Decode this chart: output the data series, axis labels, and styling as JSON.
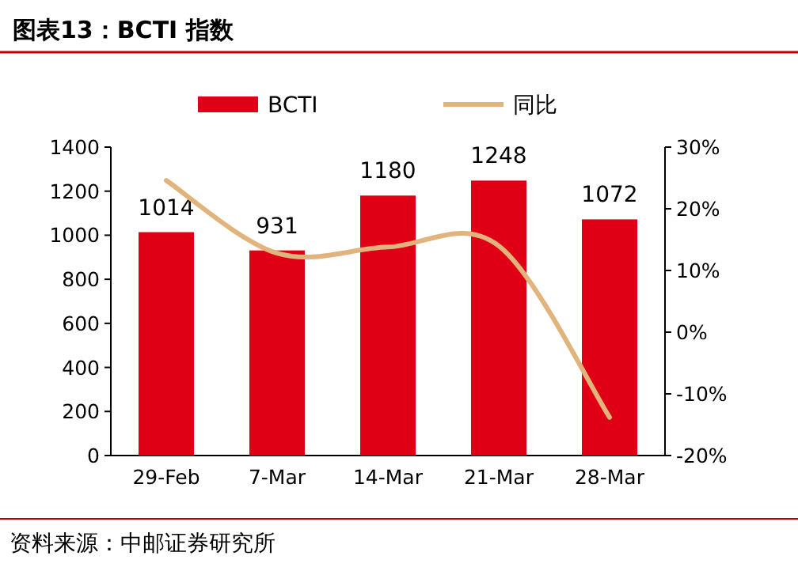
{
  "chart_data": {
    "type": "bar",
    "title": "图表13：BCTI 指数",
    "categories": [
      "29-Feb",
      "7-Mar",
      "14-Mar",
      "21-Mar",
      "28-Mar"
    ],
    "series": [
      {
        "name": "BCTI",
        "color": "#e00016",
        "values": [
          1014,
          931,
          1180,
          1248,
          1072
        ],
        "value_labels": [
          "1014",
          "931",
          "1180",
          "1248",
          "1072"
        ]
      },
      {
        "name": "同比",
        "type": "line",
        "axis": "y2",
        "color": "#e0b47c",
        "values": [
          24.6,
          12.8,
          13.8,
          14.0,
          -13.8
        ]
      }
    ],
    "ylim": [
      0,
      1400
    ],
    "yticks": [
      0,
      200,
      400,
      600,
      800,
      1000,
      1200,
      1400
    ],
    "y2lim": [
      -20,
      30
    ],
    "y2ticks": [
      {
        "value": -20,
        "label": "-20%"
      },
      {
        "value": -10,
        "label": "-10%"
      },
      {
        "value": 0,
        "label": "0%"
      },
      {
        "value": 10,
        "label": "10%"
      },
      {
        "value": 20,
        "label": "20%"
      },
      {
        "value": 30,
        "label": "30%"
      }
    ],
    "legend": "top",
    "grid": false,
    "annotations": [
      "资料来源：中邮证券研究所"
    ]
  }
}
